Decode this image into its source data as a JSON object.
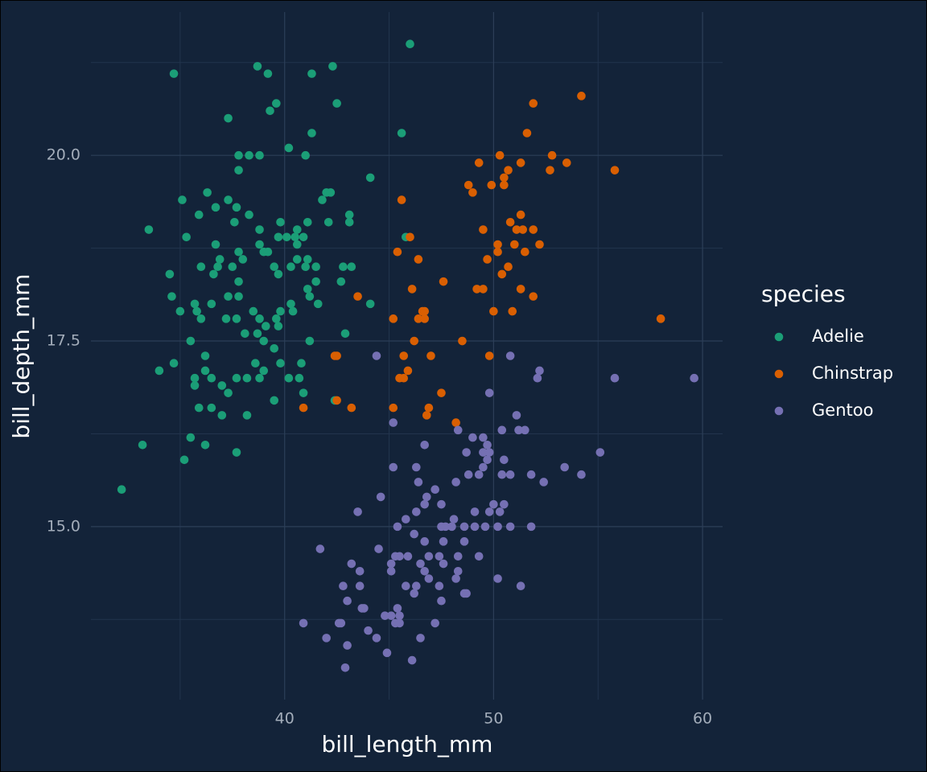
{
  "chart_data": {
    "type": "scatter",
    "x_label": "bill_length_mm",
    "y_label": "bill_depth_mm",
    "legend_title": "species",
    "legend_position": "right",
    "grid": true,
    "xlim": [
      30.73,
      60.96
    ],
    "ylim": [
      12.67,
      21.93
    ],
    "xticks": [
      40,
      50,
      60
    ],
    "yticks": [
      {
        "value": 15,
        "label": "15.0"
      },
      {
        "value": 17.5,
        "label": "17.5"
      },
      {
        "value": 20,
        "label": "20.0"
      }
    ],
    "x_minor_ticks": [
      35,
      45,
      55
    ],
    "y_minor_ticks": [
      13.75,
      16.25,
      18.75,
      21.25
    ],
    "series": [
      {
        "name": "Adelie",
        "color": "#1b9e77",
        "x": [
          32.2,
          33.2,
          33.5,
          34.0,
          34.5,
          34.6,
          34.7,
          34.7,
          35.0,
          35.1,
          35.2,
          35.3,
          35.5,
          35.5,
          35.7,
          35.7,
          35.7,
          35.9,
          35.9,
          36.0,
          36.0,
          36.2,
          36.2,
          36.2,
          36.3,
          36.5,
          36.5,
          36.5,
          36.6,
          36.7,
          36.7,
          36.8,
          36.9,
          37.0,
          37.0,
          37.2,
          37.3,
          37.3,
          37.3,
          37.3,
          37.5,
          37.6,
          37.7,
          37.7,
          37.7,
          37.7,
          37.8,
          37.8,
          37.8,
          37.8,
          37.8,
          38.0,
          38.1,
          38.2,
          38.2,
          38.3,
          38.3,
          38.5,
          38.6,
          38.7,
          38.7,
          38.8,
          38.8,
          38.8,
          38.8,
          38.8,
          39.0,
          39.0,
          39.0,
          39.1,
          39.2,
          39.2,
          39.3,
          39.5,
          39.5,
          39.5,
          39.6,
          39.6,
          39.7,
          39.7,
          39.7,
          39.8,
          39.8,
          39.8,
          40.1,
          40.2,
          40.2,
          40.3,
          40.3,
          40.4,
          40.5,
          40.6,
          40.7,
          40.6,
          40.6,
          40.8,
          40.9,
          40.9,
          41.0,
          41.0,
          41.1,
          41.1,
          41.1,
          41.2,
          41.2,
          41.3,
          41.3,
          41.5,
          41.5,
          41.6,
          41.8,
          42.0,
          42.1,
          42.2,
          42.3,
          42.4,
          42.5,
          42.7,
          42.8,
          42.9,
          43.1,
          43.1,
          43.2,
          44.1,
          44.1,
          45.6,
          45.8,
          46.0,
          35.8
        ],
        "y": [
          15.5,
          16.1,
          19.0,
          17.1,
          18.4,
          18.1,
          17.2,
          21.1,
          17.9,
          19.4,
          15.9,
          18.9,
          16.2,
          17.5,
          18.0,
          17.0,
          16.9,
          19.2,
          16.6,
          18.5,
          17.8,
          17.1,
          17.3,
          16.1,
          19.5,
          17.0,
          18.0,
          16.6,
          18.4,
          19.3,
          18.8,
          18.5,
          18.6,
          16.9,
          16.5,
          17.8,
          18.1,
          19.4,
          20.5,
          16.8,
          18.5,
          19.1,
          19.3,
          17.0,
          17.8,
          16.0,
          18.3,
          18.7,
          19.8,
          20.0,
          18.1,
          18.6,
          17.6,
          16.5,
          17.0,
          20.0,
          19.2,
          17.9,
          17.2,
          21.2,
          17.6,
          19.0,
          17.8,
          17.0,
          20.0,
          18.8,
          18.7,
          17.1,
          17.5,
          17.7,
          18.7,
          21.1,
          20.6,
          18.5,
          17.4,
          16.7,
          17.8,
          20.7,
          17.7,
          18.9,
          18.4,
          17.9,
          19.1,
          17.2,
          18.9,
          20.1,
          17.0,
          18.0,
          18.5,
          17.9,
          18.9,
          19.0,
          17.0,
          18.6,
          18.8,
          17.2,
          16.8,
          18.9,
          20.0,
          18.5,
          18.6,
          19.1,
          18.2,
          17.5,
          18.1,
          20.3,
          21.1,
          18.5,
          18.3,
          18.0,
          19.4,
          19.5,
          19.1,
          19.5,
          21.2,
          16.7,
          20.7,
          18.3,
          18.5,
          17.6,
          19.1,
          19.2,
          18.5,
          18.0,
          19.7,
          20.3,
          18.9,
          21.5,
          17.9
        ]
      },
      {
        "name": "Chinstrap",
        "color": "#d95f02",
        "x": [
          40.9,
          42.5,
          42.4,
          42.5,
          43.2,
          43.5,
          45.2,
          45.2,
          45.4,
          45.5,
          45.6,
          45.7,
          45.7,
          45.9,
          46.0,
          46.1,
          46.2,
          46.4,
          46.4,
          46.6,
          46.7,
          46.7,
          46.8,
          46.9,
          47.0,
          47.5,
          47.6,
          48.2,
          48.5,
          48.8,
          49.0,
          49.2,
          49.3,
          49.5,
          49.5,
          49.7,
          49.8,
          49.9,
          50.0,
          50.2,
          50.2,
          50.3,
          50.4,
          50.5,
          50.5,
          50.7,
          50.7,
          50.8,
          50.9,
          51.0,
          51.1,
          51.3,
          51.3,
          51.4,
          51.3,
          51.5,
          51.6,
          51.9,
          51.9,
          51.9,
          52.2,
          52.7,
          52.8,
          53.5,
          54.2,
          55.8,
          58.0
        ],
        "y": [
          16.6,
          17.3,
          17.3,
          16.7,
          16.6,
          18.1,
          17.8,
          16.6,
          18.7,
          17.0,
          19.4,
          17.3,
          17.0,
          17.1,
          18.9,
          18.2,
          17.5,
          18.6,
          17.8,
          17.9,
          17.8,
          17.9,
          16.5,
          16.6,
          17.3,
          16.8,
          18.3,
          16.4,
          17.5,
          19.6,
          19.5,
          18.2,
          19.9,
          19.0,
          18.2,
          18.6,
          17.3,
          19.6,
          17.9,
          18.7,
          18.8,
          20.0,
          18.4,
          19.6,
          19.7,
          19.8,
          18.5,
          19.1,
          17.9,
          18.8,
          19.0,
          19.9,
          19.2,
          19.0,
          18.2,
          18.7,
          20.3,
          20.7,
          19.0,
          18.1,
          18.8,
          19.8,
          20.0,
          19.9,
          20.8,
          19.8,
          17.8
        ]
      },
      {
        "name": "Gentoo",
        "color": "#7570b3",
        "x": [
          44.4,
          50.8,
          52.2,
          52.1,
          55.8,
          59.6,
          49.8,
          45.2,
          51.1,
          50.4,
          51.2,
          51.5,
          48.3,
          46.7,
          49.0,
          49.5,
          49.7,
          49.5,
          48.7,
          49.8,
          50.5,
          45.2,
          46.3,
          49.5,
          49.7,
          53.4,
          55.1,
          54.2,
          52.4,
          48.8,
          48.2,
          49.3,
          50.4,
          50.8,
          51.8,
          46.4,
          47.2,
          44.6,
          46.8,
          46.7,
          47.5,
          50.0,
          50.5,
          50.3,
          43.5,
          46.3,
          49.1,
          49.8,
          48.1,
          45.8,
          47.5,
          47.7,
          48.0,
          48.6,
          49.1,
          49.6,
          50.2,
          50.8,
          51.8,
          45.4,
          46.2,
          48.6,
          46.7,
          47.6,
          41.7,
          44.5,
          45.5,
          45.9,
          45.3,
          46.9,
          47.4,
          48.3,
          49.3,
          43.2,
          45.1,
          46.5,
          47.6,
          43.6,
          45.1,
          46.7,
          48.3,
          46.9,
          48.2,
          50.2,
          42.8,
          43.6,
          45.8,
          46.3,
          51.3,
          46.2,
          47.4,
          48.6,
          48.7,
          43.0,
          47.5,
          43.7,
          43.8,
          45.4,
          45.1,
          44.8,
          45.5,
          45.3,
          45.5,
          40.9,
          42.6,
          42.7,
          47.2,
          44.0,
          42.0,
          46.5,
          43.0,
          44.4,
          44.9,
          46.1,
          42.9
        ],
        "y": [
          17.3,
          17.3,
          17.1,
          17.0,
          17.0,
          17.0,
          16.8,
          16.4,
          16.5,
          16.3,
          16.3,
          16.3,
          16.3,
          16.1,
          16.2,
          16.2,
          16.1,
          16.0,
          16.0,
          16.0,
          15.9,
          15.8,
          15.8,
          15.8,
          15.9,
          15.8,
          16.0,
          15.7,
          15.6,
          15.7,
          15.6,
          15.7,
          15.7,
          15.7,
          15.7,
          15.6,
          15.5,
          15.4,
          15.4,
          15.3,
          15.3,
          15.3,
          15.3,
          15.2,
          15.2,
          15.2,
          15.2,
          15.2,
          15.1,
          15.1,
          15.0,
          15.0,
          15.0,
          15.0,
          15.0,
          15.0,
          15.0,
          15.0,
          15.0,
          15.0,
          14.9,
          14.8,
          14.8,
          14.8,
          14.7,
          14.7,
          14.6,
          14.6,
          14.6,
          14.6,
          14.6,
          14.6,
          14.6,
          14.5,
          14.5,
          14.5,
          14.5,
          14.4,
          14.4,
          14.4,
          14.4,
          14.3,
          14.3,
          14.3,
          14.2,
          14.2,
          14.2,
          14.2,
          14.2,
          14.1,
          14.2,
          14.1,
          14.1,
          14.0,
          14.0,
          13.9,
          13.9,
          13.9,
          13.8,
          13.8,
          13.8,
          13.7,
          13.7,
          13.7,
          13.7,
          13.7,
          13.7,
          13.6,
          13.5,
          13.5,
          13.4,
          13.5,
          13.3,
          13.2,
          13.1
        ]
      }
    ]
  }
}
